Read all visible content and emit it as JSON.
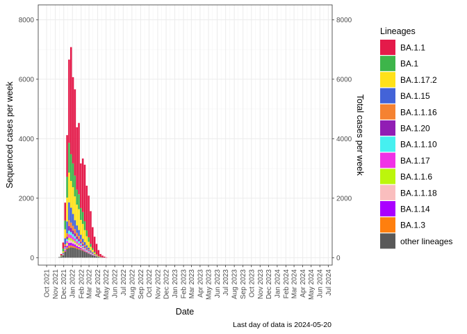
{
  "chart_data": {
    "type": "bar",
    "stacked": true,
    "xlabel": "Date",
    "ylabel": "Sequenced cases per week",
    "ylabel_right": "Total cases per week",
    "caption": "Last day of data is 2024-05-20",
    "ylim": [
      -250,
      8500
    ],
    "yticks": [
      "0",
      "2000",
      "4000",
      "6000",
      "8000"
    ],
    "ytick_values": [
      0,
      2000,
      4000,
      6000,
      8000
    ],
    "xlim": [
      "2021-09-01",
      "2024-07-15"
    ],
    "grid": true,
    "legend_position": "right",
    "legend_title": "Lineages",
    "x_tick_labels": [
      "Oct 2021",
      "Nov 2021",
      "Dec 2021",
      "Jan 2022",
      "Feb 2022",
      "Mar 2022",
      "Apr 2022",
      "May 2022",
      "Jun 2022",
      "Jul 2022",
      "Aug 2022",
      "Sep 2022",
      "Oct 2022",
      "Nov 2022",
      "Dec 2022",
      "Jan 2023",
      "Feb 2023",
      "Mar 2023",
      "Apr 2023",
      "May 2023",
      "Jun 2023",
      "Jul 2023",
      "Aug 2023",
      "Sep 2023",
      "Oct 2023",
      "Nov 2023",
      "Dec 2023",
      "Jan 2024",
      "Feb 2024",
      "Mar 2024",
      "Apr 2024",
      "May 2024",
      "Jun 2024",
      "Jul 2024"
    ],
    "x_tick_dates": [
      "2021-10-01",
      "2021-11-01",
      "2021-12-01",
      "2022-01-01",
      "2022-02-01",
      "2022-03-01",
      "2022-04-01",
      "2022-05-01",
      "2022-06-01",
      "2022-07-01",
      "2022-08-01",
      "2022-09-01",
      "2022-10-01",
      "2022-11-01",
      "2022-12-01",
      "2023-01-01",
      "2023-02-01",
      "2023-03-01",
      "2023-04-01",
      "2023-05-01",
      "2023-06-01",
      "2023-07-01",
      "2023-08-01",
      "2023-09-01",
      "2023-10-01",
      "2023-11-01",
      "2023-12-01",
      "2024-01-01",
      "2024-02-01",
      "2024-03-01",
      "2024-04-01",
      "2024-05-01",
      "2024-06-01",
      "2024-07-01"
    ],
    "x": [
      "2021-11-15",
      "2021-11-22",
      "2021-11-29",
      "2021-12-06",
      "2021-12-13",
      "2021-12-20",
      "2021-12-27",
      "2022-01-03",
      "2022-01-10",
      "2022-01-17",
      "2022-01-24",
      "2022-01-31",
      "2022-02-07",
      "2022-02-14",
      "2022-02-21",
      "2022-02-28",
      "2022-03-07",
      "2022-03-14",
      "2022-03-21",
      "2022-03-28",
      "2022-04-04",
      "2022-04-11",
      "2022-04-18",
      "2022-04-25",
      "2022-05-02"
    ],
    "series": [
      {
        "name": "BA.1.1",
        "color": "#E41A4A",
        "values": [
          0,
          50,
          200,
          600,
          1400,
          2800,
          3600,
          2900,
          2900,
          2100,
          2400,
          1500,
          1800,
          1900,
          1500,
          1400,
          1100,
          700,
          500,
          350,
          200,
          100,
          60,
          30,
          10
        ]
      },
      {
        "name": "BA.1",
        "color": "#3DB54A",
        "values": [
          0,
          20,
          100,
          300,
          700,
          1000,
          900,
          800,
          700,
          500,
          500,
          400,
          400,
          300,
          200,
          150,
          100,
          60,
          40,
          20,
          10,
          5,
          0,
          0,
          0
        ]
      },
      {
        "name": "BA.1.17.2",
        "color": "#FFE119",
        "values": [
          0,
          10,
          50,
          300,
          800,
          1000,
          900,
          900,
          800,
          700,
          700,
          500,
          500,
          400,
          300,
          200,
          120,
          80,
          50,
          30,
          15,
          5,
          0,
          0,
          0
        ]
      },
      {
        "name": "BA.1.15",
        "color": "#4363D8",
        "values": [
          0,
          5,
          30,
          200,
          400,
          600,
          500,
          400,
          300,
          250,
          200,
          150,
          120,
          100,
          80,
          60,
          40,
          30,
          15,
          10,
          5,
          0,
          0,
          0,
          0
        ]
      },
      {
        "name": "BA.1.1.16",
        "color": "#F58231",
        "values": [
          0,
          0,
          10,
          60,
          120,
          200,
          180,
          160,
          140,
          120,
          100,
          80,
          60,
          50,
          40,
          30,
          20,
          15,
          10,
          5,
          0,
          0,
          0,
          0,
          0
        ]
      },
      {
        "name": "BA.1.20",
        "color": "#911EB4",
        "values": [
          0,
          0,
          10,
          40,
          80,
          150,
          140,
          120,
          100,
          90,
          80,
          60,
          50,
          40,
          30,
          25,
          20,
          15,
          10,
          5,
          0,
          0,
          0,
          0,
          0
        ]
      },
      {
        "name": "BA.1.1.10",
        "color": "#46F0F0",
        "values": [
          0,
          0,
          5,
          30,
          60,
          120,
          100,
          90,
          80,
          70,
          60,
          50,
          40,
          30,
          25,
          20,
          15,
          10,
          5,
          5,
          0,
          0,
          0,
          0,
          0
        ]
      },
      {
        "name": "BA.1.17",
        "color": "#F032E6",
        "values": [
          0,
          0,
          5,
          30,
          70,
          120,
          110,
          100,
          90,
          70,
          60,
          50,
          40,
          30,
          20,
          15,
          10,
          10,
          5,
          0,
          0,
          0,
          0,
          0,
          0
        ]
      },
      {
        "name": "BA.1.1.6",
        "color": "#BCF60C",
        "values": [
          0,
          0,
          5,
          20,
          40,
          80,
          70,
          60,
          50,
          40,
          30,
          25,
          20,
          15,
          10,
          10,
          5,
          5,
          0,
          0,
          0,
          0,
          0,
          0,
          0
        ]
      },
      {
        "name": "BA.1.1.18",
        "color": "#FABEBE",
        "values": [
          0,
          0,
          5,
          20,
          50,
          90,
          80,
          70,
          60,
          50,
          40,
          30,
          25,
          20,
          15,
          10,
          10,
          5,
          5,
          0,
          0,
          0,
          0,
          0,
          0
        ]
      },
      {
        "name": "BA.1.14",
        "color": "#AA00FF",
        "values": [
          0,
          0,
          5,
          30,
          60,
          100,
          90,
          80,
          70,
          60,
          50,
          40,
          30,
          25,
          20,
          15,
          10,
          10,
          5,
          0,
          0,
          0,
          0,
          0,
          0
        ]
      },
      {
        "name": "BA.1.3",
        "color": "#FF7F0E",
        "values": [
          0,
          0,
          5,
          20,
          40,
          70,
          60,
          50,
          40,
          35,
          30,
          25,
          20,
          15,
          10,
          10,
          5,
          5,
          0,
          0,
          0,
          0,
          0,
          0,
          0
        ]
      },
      {
        "name": "other lineages",
        "color": "#595959",
        "values": [
          20,
          40,
          80,
          200,
          300,
          330,
          350,
          340,
          330,
          300,
          280,
          260,
          230,
          200,
          170,
          140,
          110,
          80,
          60,
          40,
          25,
          15,
          10,
          5,
          0
        ]
      }
    ]
  }
}
